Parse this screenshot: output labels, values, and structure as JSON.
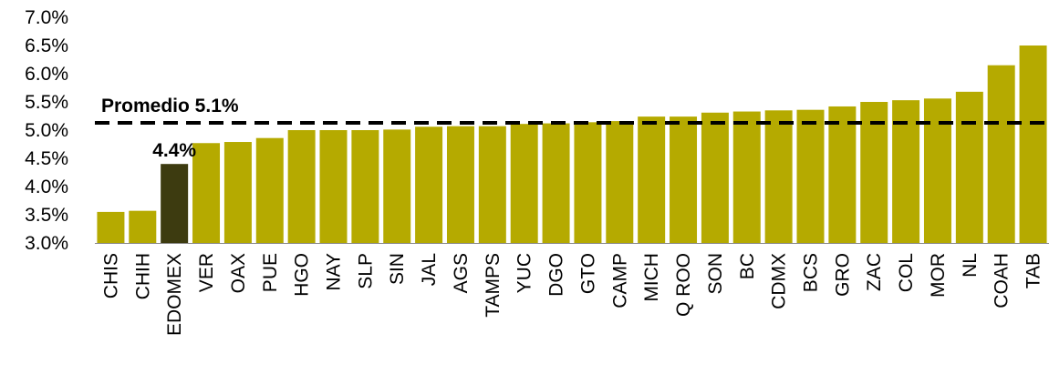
{
  "chart_data": {
    "type": "bar",
    "categories": [
      "CHIS",
      "CHIH",
      "EDOMEX",
      "VER",
      "OAX",
      "PUE",
      "HGO",
      "NAY",
      "SLP",
      "SIN",
      "JAL",
      "AGS",
      "TAMPS",
      "YUC",
      "DGO",
      "GTO",
      "CAMP",
      "MICH",
      "Q ROO",
      "SON",
      "BC",
      "CDMX",
      "BCS",
      "GRO",
      "ZAC",
      "COL",
      "MOR",
      "NL",
      "COAH",
      "TAB"
    ],
    "values": [
      3.55,
      3.57,
      4.4,
      4.77,
      4.79,
      4.86,
      5.0,
      5.0,
      5.0,
      5.01,
      5.06,
      5.07,
      5.07,
      5.11,
      5.12,
      5.14,
      5.16,
      5.24,
      5.24,
      5.31,
      5.33,
      5.35,
      5.36,
      5.42,
      5.5,
      5.53,
      5.56,
      5.68,
      6.15,
      6.5
    ],
    "highlight_index": 2,
    "ylim": [
      3.0,
      7.0
    ],
    "yticks": [
      "3.0%",
      "3.5%",
      "4.0%",
      "4.5%",
      "5.0%",
      "5.5%",
      "6.0%",
      "6.5%",
      "7.0%"
    ],
    "bar_color": "#b5aa00",
    "highlight_color": "#3d3b10",
    "average": {
      "value": 5.13,
      "label": "Promedio 5.1%"
    },
    "highlight_label": "4.4%",
    "title": "",
    "xlabel": "",
    "ylabel": ""
  }
}
